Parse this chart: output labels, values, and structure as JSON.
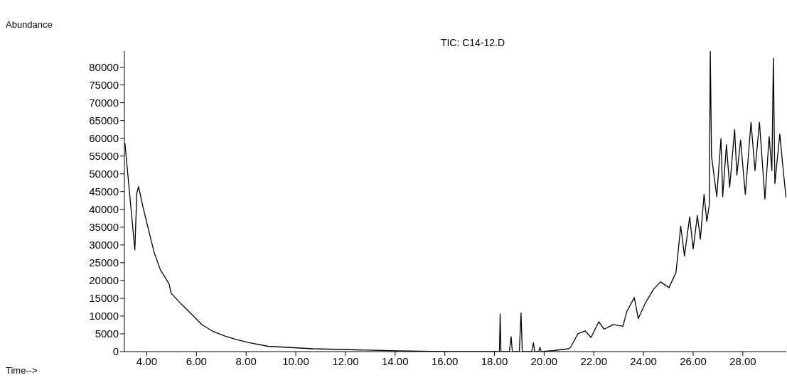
{
  "chart_data": {
    "type": "line",
    "title": "TIC: C14-12.D",
    "annotations": [
      "Time-->"
    ],
    "ylabel": "Abundance",
    "xlim": [
      3.1,
      29.75
    ],
    "ylim": [
      0,
      84500
    ],
    "xticks": [
      {
        "value": 4,
        "label": "4.00"
      },
      {
        "value": 6,
        "label": "6.00"
      },
      {
        "value": 8,
        "label": "8.00"
      },
      {
        "value": 10,
        "label": "10.00"
      },
      {
        "value": 12,
        "label": "12.00"
      },
      {
        "value": 14,
        "label": "14.00"
      },
      {
        "value": 16,
        "label": "16.00"
      },
      {
        "value": 18,
        "label": "18.00"
      },
      {
        "value": 20,
        "label": "20.00"
      },
      {
        "value": 22,
        "label": "22.00"
      },
      {
        "value": 24,
        "label": "24.00"
      },
      {
        "value": 26,
        "label": "26.00"
      },
      {
        "value": 28,
        "label": "28.00"
      }
    ],
    "yticks": [
      0,
      5000,
      10000,
      15000,
      20000,
      25000,
      30000,
      35000,
      40000,
      45000,
      50000,
      55000,
      60000,
      65000,
      70000,
      75000,
      80000
    ],
    "grid": false,
    "legend": false,
    "marker": "none",
    "line_style": "solid",
    "series": [
      {
        "color": "#000000",
        "x": [
          3.12,
          3.52,
          3.6,
          3.67,
          3.84,
          4.07,
          4.31,
          4.55,
          4.79,
          4.9,
          4.98,
          5.36,
          5.74,
          6.22,
          6.69,
          7.17,
          7.65,
          8.12,
          8.89,
          10.7,
          14.1,
          16,
          18.1,
          18.2,
          18.23,
          18.26,
          18.6,
          18.67,
          18.72,
          19.0,
          19.07,
          19.12,
          19.5,
          19.57,
          19.62,
          19.78,
          19.83,
          19.88,
          20.4,
          20.98,
          21.07,
          21.36,
          21.65,
          21.89,
          22.2,
          22.41,
          22.79,
          23.17,
          23.33,
          23.63,
          23.79,
          24.07,
          24.41,
          24.69,
          25.03,
          25.31,
          25.5,
          25.65,
          25.86,
          26.0,
          26.17,
          26.29,
          26.44,
          26.55,
          26.65,
          26.69,
          26.74,
          26.95,
          27.12,
          27.19,
          27.34,
          27.47,
          27.67,
          27.76,
          27.91,
          28.1,
          28.33,
          28.49,
          28.67,
          28.89,
          29.06,
          29.17,
          29.23,
          29.29,
          29.49,
          29.6,
          29.74
        ],
        "values": [
          58700,
          28600,
          44600,
          46400,
          40900,
          34300,
          27600,
          23000,
          20300,
          19000,
          16400,
          13600,
          11000,
          7600,
          5600,
          4300,
          3300,
          2500,
          1500,
          800,
          200,
          0,
          0,
          0,
          10600,
          0,
          0,
          4200,
          0,
          0,
          10900,
          0,
          0,
          2500,
          0,
          0,
          1200,
          0,
          300,
          800,
          1300,
          5000,
          5800,
          4000,
          8400,
          6300,
          7600,
          7100,
          11300,
          15200,
          9300,
          13600,
          17600,
          19600,
          18000,
          22300,
          35300,
          26900,
          37900,
          28900,
          38300,
          31600,
          44200,
          36600,
          41300,
          84500,
          54900,
          43600,
          59900,
          43600,
          58200,
          46200,
          62500,
          49600,
          59500,
          44200,
          64500,
          50900,
          64500,
          42900,
          60500,
          50900,
          82500,
          47200,
          61200,
          52900,
          43300
        ]
      }
    ]
  }
}
